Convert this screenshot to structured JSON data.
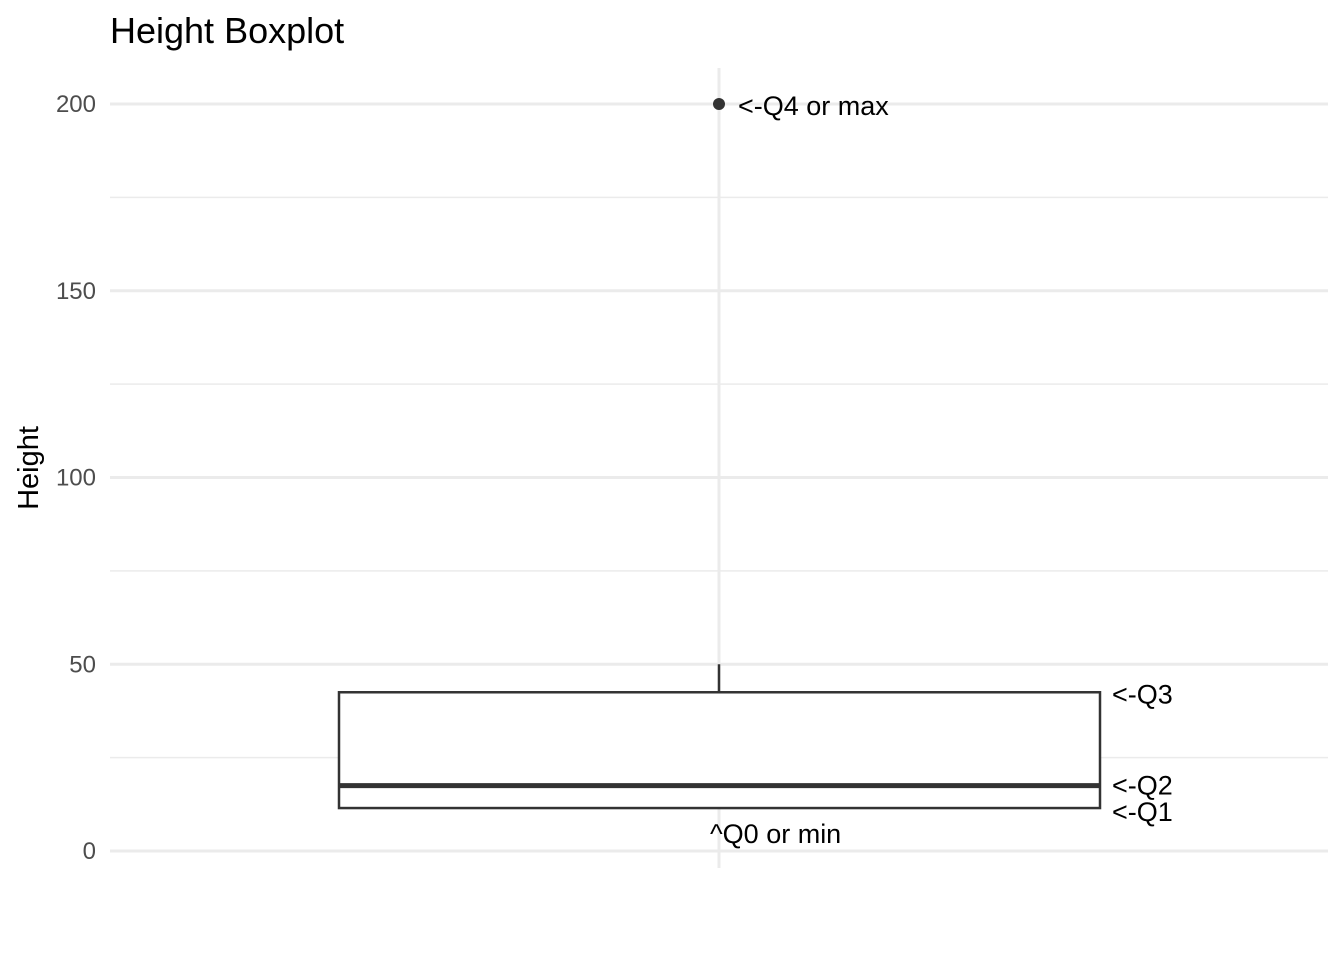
{
  "chart_data": {
    "type": "boxplot",
    "title": "Height Boxplot",
    "xlabel": "",
    "ylabel": "Height",
    "ylim": [
      -5,
      210
    ],
    "yticks": [
      0,
      50,
      100,
      150,
      200
    ],
    "ytick_labels": [
      "0",
      "50",
      "100",
      "150",
      "200"
    ],
    "grid": true,
    "box": {
      "q1": 11.5,
      "median": 17.5,
      "q3": 42.5,
      "whisker_low": 11.5,
      "whisker_high": 50,
      "outliers": [
        200
      ]
    },
    "annotations": [
      {
        "text": "<-Q4 or max",
        "y": 200
      },
      {
        "text": "<-Q3",
        "y": 42.5
      },
      {
        "text": "<-Q2",
        "y": 17.5
      },
      {
        "text": "<-Q1",
        "y": 11.5
      },
      {
        "text": "^Q0 or min",
        "y": 11.5
      }
    ],
    "colors": {
      "grid": "#ebebeb",
      "box": "#333333",
      "text": "#000000",
      "tick_text": "#4d4d4d"
    }
  }
}
